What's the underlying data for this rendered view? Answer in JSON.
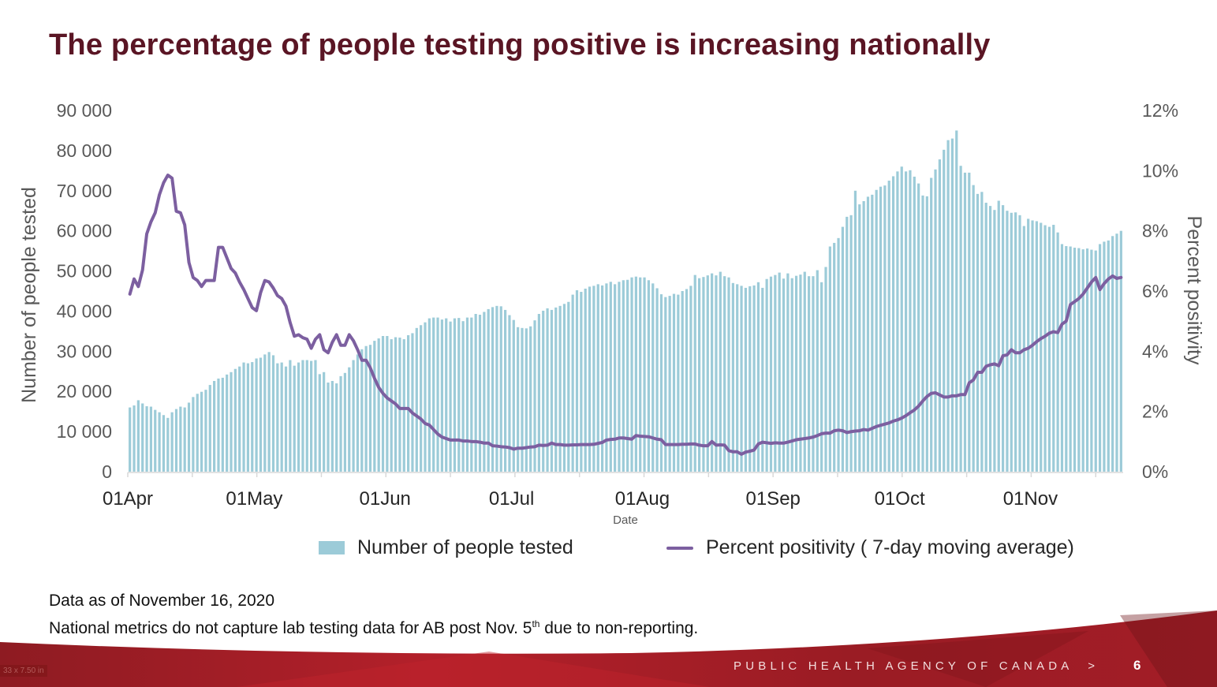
{
  "slide": {
    "title": "The percentage of people testing positive is increasing nationally",
    "notes": {
      "line1": "Data as of November 16, 2020",
      "line2_before": "National metrics do not capture lab testing data for AB post Nov. 5",
      "line2_sup": "th",
      "line2_after": " due to non-reporting."
    },
    "footer": {
      "agency": "PUBLIC HEALTH AGENCY OF CANADA",
      "separator": ">",
      "page_number": "6"
    },
    "size_tag": "33 x 7.50 in"
  },
  "chart_data": {
    "type": "bar+line",
    "title": "",
    "xlabel": "Date",
    "ylabel_left": "Number of people tested",
    "ylabel_right": "Percent positivity",
    "ylim_left": [
      0,
      90000
    ],
    "ylim_right": [
      0,
      12
    ],
    "yticks_left": [
      "0",
      "10 000",
      "20 000",
      "30 000",
      "40 000",
      "50 000",
      "60 000",
      "70 000",
      "80 000",
      "90 000"
    ],
    "yticks_right": [
      "0%",
      "2%",
      "4%",
      "6%",
      "8%",
      "10%",
      "12%"
    ],
    "xticks": [
      "01Apr",
      "01May",
      "01Jun",
      "01Jul",
      "01Aug",
      "01Sep",
      "01Oct",
      "01Nov"
    ],
    "xtick_day_offsets": [
      0,
      30,
      61,
      91,
      122,
      153,
      183,
      214
    ],
    "start_date": "2020-04-01",
    "grid": false,
    "legend": {
      "position": "bottom",
      "entries": [
        {
          "name": "Number of people tested",
          "type": "bar",
          "color": "#9ccbd8"
        },
        {
          "name": "Percent positivity ( 7-day moving average)",
          "type": "line",
          "color": "#7c5fa0"
        }
      ]
    },
    "series": [
      {
        "name": "Number of people tested",
        "type": "bar",
        "color": "#9ccbd8",
        "values": [
          16000,
          16500,
          17800,
          17000,
          16300,
          16200,
          15400,
          14800,
          14100,
          13400,
          14800,
          15600,
          16200,
          16000,
          17200,
          18600,
          19400,
          19900,
          20400,
          21600,
          22600,
          23200,
          23400,
          24200,
          24800,
          25600,
          26200,
          27200,
          27000,
          27300,
          28200,
          28400,
          29200,
          29800,
          29000,
          27000,
          27200,
          26200,
          27800,
          26400,
          27200,
          27800,
          27800,
          27600,
          27800,
          24300,
          24800,
          22200,
          22600,
          22000,
          23800,
          24600,
          26000,
          27800,
          29200,
          30500,
          31300,
          31600,
          32600,
          33200,
          33800,
          33800,
          33000,
          33500,
          33400,
          33000,
          34000,
          34500,
          35800,
          36500,
          37200,
          38200,
          38400,
          38400,
          37900,
          38200,
          37400,
          38200,
          38300,
          37500,
          38400,
          38400,
          39300,
          39100,
          39800,
          40500,
          41000,
          41300,
          41200,
          40300,
          39000,
          37800,
          36000,
          35800,
          35700,
          36200,
          37700,
          39300,
          40100,
          40700,
          40300,
          40900,
          41300,
          41800,
          42300,
          44100,
          45200,
          44800,
          45600,
          46100,
          46300,
          46700,
          46400,
          46900,
          47300,
          46700,
          47300,
          47700,
          47800,
          48400,
          48600,
          48400,
          48400,
          47700,
          46900,
          45700,
          44200,
          43500,
          43800,
          44300,
          44100,
          45000,
          45500,
          46300,
          49000,
          48200,
          48500,
          48900,
          49400,
          48900,
          49800,
          48700,
          48400,
          47000,
          46700,
          46300,
          45800,
          46200,
          46400,
          47200,
          45800,
          48000,
          48600,
          49000,
          49600,
          48100,
          49400,
          48200,
          48800,
          49100,
          49800,
          48700,
          48700,
          50200,
          47200,
          51000,
          56100,
          57000,
          58200,
          61000,
          63500,
          63900,
          70000,
          66600,
          67400,
          68500,
          69000,
          70200,
          71000,
          71300,
          72500,
          73600,
          74800,
          76000,
          74800,
          75100,
          73500,
          71800,
          68800,
          68600,
          73200,
          75300,
          77800,
          80200,
          82600,
          83000,
          85000,
          76200,
          74500,
          74500,
          71400,
          69200,
          69700,
          67000,
          66200,
          65200,
          67500,
          66400,
          65000,
          64500,
          64600,
          63900,
          61200,
          63000,
          62600,
          62400,
          62000,
          61400,
          61000,
          61500,
          59600,
          56700,
          56200,
          56100,
          55800,
          55700,
          55400,
          55600,
          55300,
          55100,
          56700,
          57300,
          57600,
          58700,
          59300,
          60000
        ]
      },
      {
        "name": "Percent positivity ( 7-day moving average)",
        "type": "line",
        "color": "#7c5fa0",
        "values": [
          5.9,
          6.4,
          6.15,
          6.7,
          7.9,
          8.3,
          8.6,
          9.2,
          9.6,
          9.85,
          9.75,
          8.65,
          8.6,
          8.2,
          6.95,
          6.45,
          6.35,
          6.15,
          6.35,
          6.35,
          6.35,
          7.45,
          7.45,
          7.1,
          6.75,
          6.6,
          6.3,
          6.05,
          5.75,
          5.45,
          5.35,
          5.95,
          6.35,
          6.3,
          6.1,
          5.85,
          5.75,
          5.5,
          4.95,
          4.5,
          4.55,
          4.45,
          4.4,
          4.1,
          4.4,
          4.55,
          4.05,
          3.95,
          4.3,
          4.55,
          4.2,
          4.2,
          4.55,
          4.35,
          4.05,
          3.7,
          3.7,
          3.45,
          3.1,
          2.8,
          2.6,
          2.45,
          2.35,
          2.25,
          2.1,
          2.1,
          2.1,
          1.95,
          1.85,
          1.75,
          1.6,
          1.55,
          1.4,
          1.25,
          1.15,
          1.1,
          1.05,
          1.05,
          1.05,
          1.02,
          1.02,
          1.0,
          1.0,
          0.98,
          0.95,
          0.95,
          0.86,
          0.85,
          0.83,
          0.82,
          0.8,
          0.75,
          0.78,
          0.78,
          0.8,
          0.82,
          0.83,
          0.88,
          0.87,
          0.88,
          0.95,
          0.9,
          0.9,
          0.88,
          0.88,
          0.89,
          0.89,
          0.9,
          0.9,
          0.9,
          0.91,
          0.94,
          0.97,
          1.05,
          1.07,
          1.08,
          1.12,
          1.12,
          1.1,
          1.08,
          1.2,
          1.18,
          1.17,
          1.16,
          1.12,
          1.08,
          1.06,
          0.9,
          0.9,
          0.9,
          0.9,
          0.91,
          0.91,
          0.92,
          0.92,
          0.88,
          0.86,
          0.86,
          1.0,
          0.88,
          0.89,
          0.88,
          0.7,
          0.66,
          0.66,
          0.58,
          0.65,
          0.68,
          0.72,
          0.92,
          0.98,
          0.96,
          0.94,
          0.96,
          0.95,
          0.95,
          0.98,
          1.02,
          1.06,
          1.08,
          1.1,
          1.12,
          1.15,
          1.2,
          1.26,
          1.28,
          1.28,
          1.36,
          1.38,
          1.36,
          1.3,
          1.33,
          1.35,
          1.36,
          1.4,
          1.38,
          1.44,
          1.5,
          1.54,
          1.58,
          1.62,
          1.68,
          1.72,
          1.78,
          1.86,
          1.96,
          2.05,
          2.18,
          2.35,
          2.5,
          2.6,
          2.62,
          2.55,
          2.48,
          2.48,
          2.52,
          2.52,
          2.56,
          2.56,
          2.95,
          3.05,
          3.3,
          3.3,
          3.5,
          3.55,
          3.58,
          3.52,
          3.85,
          3.88,
          4.05,
          3.95,
          3.95,
          4.05,
          4.1,
          4.2,
          4.32,
          4.42,
          4.5,
          4.6,
          4.65,
          4.62,
          4.9,
          5.0,
          5.55,
          5.65,
          5.75,
          5.9,
          6.1,
          6.3,
          6.45,
          6.05,
          6.25,
          6.4,
          6.5,
          6.42,
          6.45
        ]
      }
    ]
  }
}
